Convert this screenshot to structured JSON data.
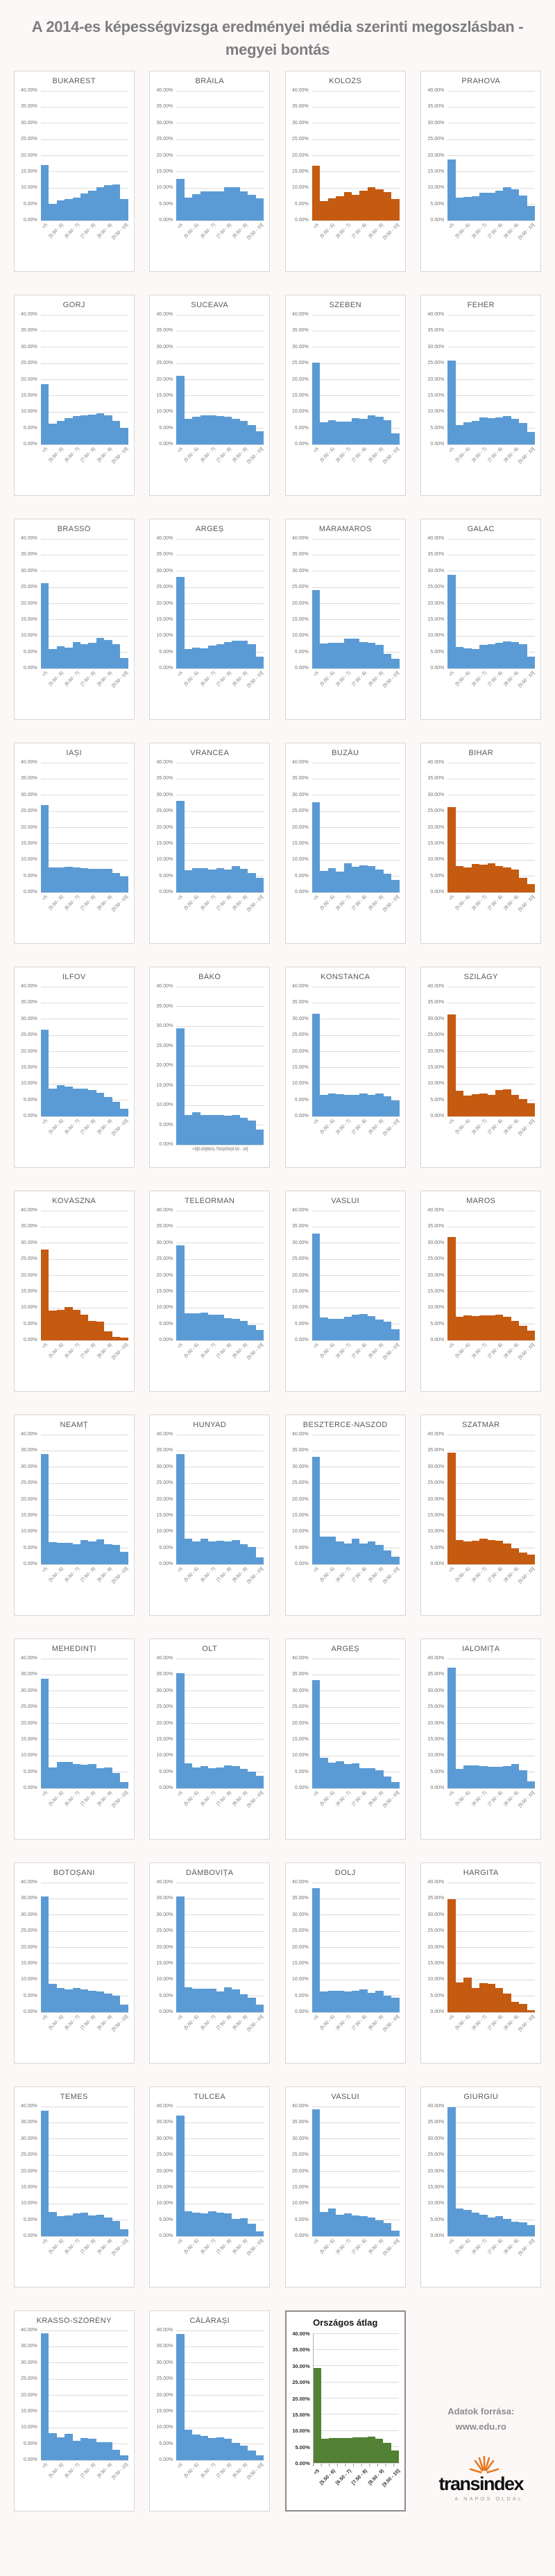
{
  "page": {
    "title": "A 2014-es képességvizsga eredményei média szerinti megoszlásban - megyei bontás"
  },
  "colors": {
    "blue": "#5b9bd5",
    "orange": "#c55a11",
    "green": "#538135",
    "grid": "#dcdcdc"
  },
  "axis": {
    "y_ticks": [
      "40.00%",
      "35.00%",
      "30.00%",
      "25.00%",
      "20.00%",
      "15.00%",
      "10.00%",
      "5.00%",
      "0.00%"
    ],
    "y_max": 40,
    "x_tick_labels": [
      "<5",
      "[5.50 - 6)",
      "[6.50 - 7)",
      "[7.50 - 8)",
      "[8.50 - 9)",
      "[9.50 - 10]"
    ],
    "bako_flat_labels": "<5[5.50[650(-750(850(9.50 - 10]"
  },
  "footer": {
    "source_label": "Adatok forrása:",
    "source_url": "www.edu.ro",
    "logo_text": "transindex",
    "logo_tagline": "A NAPOS OLDAL"
  },
  "chart_data": {
    "type": "bar",
    "title": "A 2014-es képességvizsga eredményei média szerinti megoszlásban - megyei bontás",
    "bins": [
      "<5",
      "[5 - 5.50)",
      "[5.50 - 6)",
      "[6 - 6.50)",
      "[6.50 - 7)",
      "[7 - 7.50)",
      "[7.50 - 8)",
      "[8 - 8.50)",
      "[8.50 - 9)",
      "[9 - 9.50)",
      "[9.50 - 10]"
    ],
    "shown_tick_indices": [
      0,
      2,
      4,
      6,
      8,
      10
    ],
    "ylim": [
      0,
      40
    ],
    "grid": true,
    "charts": [
      {
        "name": "BUKAREST",
        "color": "blue",
        "values": [
          17.1,
          5.2,
          6.3,
          6.6,
          7.0,
          8.3,
          9.2,
          10.3,
          11.0,
          11.1,
          6.6
        ]
      },
      {
        "name": "BRĂILA",
        "color": "blue",
        "values": [
          12.8,
          7.0,
          8.2,
          8.9,
          9.0,
          9.0,
          10.3,
          10.2,
          9.0,
          7.9,
          6.9
        ]
      },
      {
        "name": "KOLOZS",
        "color": "orange",
        "values": [
          17.0,
          6.0,
          6.9,
          7.6,
          8.7,
          7.9,
          9.3,
          10.3,
          9.6,
          8.8,
          6.6
        ]
      },
      {
        "name": "PRAHOVA",
        "color": "blue",
        "values": [
          18.8,
          7.1,
          7.3,
          7.6,
          8.5,
          8.6,
          9.3,
          10.3,
          9.7,
          7.7,
          4.5
        ]
      },
      {
        "name": "GORJ",
        "color": "blue",
        "values": [
          18.7,
          6.4,
          7.3,
          8.2,
          8.7,
          8.9,
          9.3,
          9.6,
          9.0,
          7.3,
          5.1
        ]
      },
      {
        "name": "SUCEAVA",
        "color": "blue",
        "values": [
          21.2,
          8.0,
          8.5,
          8.9,
          9.0,
          8.7,
          8.6,
          8.0,
          7.2,
          5.9,
          4.0
        ]
      },
      {
        "name": "SZEBEN",
        "color": "blue",
        "values": [
          25.3,
          6.8,
          7.6,
          7.1,
          7.0,
          8.1,
          7.9,
          9.0,
          8.5,
          7.5,
          3.4
        ]
      },
      {
        "name": "FEHÉR",
        "color": "blue",
        "values": [
          26.0,
          6.1,
          6.9,
          7.2,
          8.3,
          8.1,
          8.4,
          8.8,
          7.9,
          6.6,
          3.9
        ]
      },
      {
        "name": "BRASSÓ",
        "color": "blue",
        "values": [
          26.3,
          6.0,
          6.8,
          6.5,
          8.2,
          7.5,
          8.0,
          9.5,
          8.7,
          7.5,
          3.2
        ]
      },
      {
        "name": "ARGEȘ",
        "color": "blue",
        "values": [
          28.3,
          6.0,
          6.4,
          6.3,
          7.0,
          7.5,
          8.2,
          8.5,
          8.5,
          7.6,
          3.7
        ]
      },
      {
        "name": "MÁRAMAROS",
        "color": "blue",
        "values": [
          24.1,
          7.8,
          8.0,
          8.0,
          9.2,
          9.2,
          8.2,
          8.0,
          7.3,
          4.5,
          3.1
        ]
      },
      {
        "name": "GALAC",
        "color": "blue",
        "values": [
          28.9,
          6.6,
          6.2,
          5.9,
          7.2,
          7.5,
          8.0,
          8.3,
          8.1,
          7.4,
          3.7
        ]
      },
      {
        "name": "IAȘI",
        "color": "blue",
        "values": [
          26.9,
          7.8,
          7.8,
          8.0,
          7.7,
          7.6,
          7.3,
          7.2,
          7.2,
          6.0,
          4.9
        ]
      },
      {
        "name": "VRANCEA",
        "color": "blue",
        "values": [
          28.2,
          6.8,
          7.5,
          7.4,
          7.1,
          7.5,
          7.1,
          8.2,
          7.2,
          5.9,
          4.6
        ]
      },
      {
        "name": "BUZĂU",
        "color": "blue",
        "values": [
          27.9,
          6.7,
          7.4,
          6.5,
          9.1,
          7.9,
          8.3,
          8.1,
          7.1,
          5.7,
          3.9
        ]
      },
      {
        "name": "BIHAR",
        "color": "orange",
        "values": [
          26.4,
          8.1,
          7.7,
          8.8,
          8.5,
          9.1,
          8.2,
          7.7,
          7.1,
          4.6,
          2.5
        ]
      },
      {
        "name": "ILFOV",
        "color": "blue",
        "values": [
          26.8,
          8.5,
          9.6,
          9.2,
          8.6,
          8.6,
          8.1,
          7.2,
          6.1,
          4.6,
          2.4
        ]
      },
      {
        "name": "BÁKÓ",
        "color": "blue",
        "values": [
          29.5,
          7.6,
          8.2,
          7.6,
          7.5,
          7.5,
          7.3,
          7.6,
          6.9,
          6.2,
          3.9
        ],
        "flat_labels": true
      },
      {
        "name": "KONSTANCA",
        "color": "blue",
        "values": [
          31.7,
          6.6,
          7.1,
          6.9,
          6.6,
          6.7,
          7.1,
          6.6,
          7.0,
          6.3,
          5.0
        ]
      },
      {
        "name": "SZILÁGY",
        "color": "orange",
        "values": [
          31.5,
          8.0,
          6.5,
          6.9,
          7.0,
          6.7,
          8.1,
          8.3,
          6.6,
          5.3,
          4.1
        ]
      },
      {
        "name": "KOVÁSZNA",
        "color": "orange",
        "values": [
          28.1,
          9.2,
          9.4,
          10.2,
          9.5,
          8.0,
          5.9,
          5.8,
          2.7,
          1.0,
          0.9
        ]
      },
      {
        "name": "TELEORMAN",
        "color": "blue",
        "values": [
          29.4,
          8.3,
          8.4,
          8.6,
          8.0,
          8.0,
          6.9,
          6.6,
          6.0,
          4.8,
          3.2
        ]
      },
      {
        "name": "VASLUI",
        "color": "blue",
        "values": [
          32.9,
          7.0,
          6.6,
          6.6,
          7.3,
          8.0,
          8.1,
          7.5,
          6.4,
          5.8,
          3.5
        ]
      },
      {
        "name": "MAROS",
        "color": "orange",
        "values": [
          31.9,
          7.3,
          7.7,
          7.5,
          7.7,
          7.8,
          8.0,
          7.3,
          5.9,
          4.4,
          3.0
        ]
      },
      {
        "name": "NEAMȚ",
        "color": "blue",
        "values": [
          34.0,
          6.9,
          6.7,
          6.7,
          6.2,
          7.6,
          7.1,
          7.7,
          6.3,
          6.1,
          3.9
        ]
      },
      {
        "name": "HUNYAD",
        "color": "blue",
        "values": [
          34.0,
          7.9,
          7.0,
          7.9,
          7.0,
          7.2,
          7.0,
          7.6,
          6.3,
          5.3,
          2.2
        ]
      },
      {
        "name": "BESZTERCE-NASZÓD",
        "color": "blue",
        "values": [
          33.2,
          8.6,
          8.6,
          7.0,
          6.5,
          7.9,
          6.5,
          7.1,
          5.9,
          4.3,
          2.3
        ]
      },
      {
        "name": "SZATMÁR",
        "color": "orange",
        "values": [
          34.5,
          7.6,
          7.1,
          7.2,
          8.0,
          7.5,
          7.3,
          6.4,
          5.0,
          3.7,
          3.1
        ]
      },
      {
        "name": "MEHEDINȚI",
        "color": "blue",
        "values": [
          33.9,
          6.4,
          8.2,
          8.2,
          7.5,
          7.2,
          7.5,
          6.3,
          6.4,
          4.8,
          2.0
        ]
      },
      {
        "name": "OLT",
        "color": "blue",
        "values": [
          35.6,
          7.7,
          6.5,
          6.9,
          6.3,
          6.5,
          7.0,
          6.9,
          6.0,
          5.2,
          3.8
        ]
      },
      {
        "name": "ARGEȘ",
        "color": "blue",
        "values": [
          33.3,
          9.4,
          8.0,
          8.3,
          7.5,
          7.7,
          6.3,
          6.3,
          5.6,
          3.6,
          2.0
        ]
      },
      {
        "name": "IALOMIȚA",
        "color": "blue",
        "values": [
          37.3,
          6.0,
          7.0,
          7.0,
          6.8,
          6.7,
          6.6,
          6.8,
          7.5,
          5.5,
          2.1
        ]
      },
      {
        "name": "BOTOȘANI",
        "color": "blue",
        "values": [
          35.8,
          8.8,
          7.6,
          7.0,
          7.5,
          7.0,
          6.7,
          6.5,
          5.8,
          5.2,
          2.3
        ]
      },
      {
        "name": "DÂMBOVIȚA",
        "color": "blue",
        "values": [
          35.7,
          7.7,
          7.3,
          7.2,
          7.3,
          6.5,
          7.8,
          7.0,
          5.5,
          4.6,
          2.4
        ]
      },
      {
        "name": "DOLJ",
        "color": "blue",
        "values": [
          38.3,
          6.5,
          6.7,
          6.6,
          6.4,
          6.7,
          7.1,
          5.9,
          6.7,
          5.1,
          4.4
        ]
      },
      {
        "name": "HARGITA",
        "color": "orange",
        "values": [
          34.8,
          9.2,
          10.6,
          7.6,
          9.0,
          8.7,
          7.5,
          5.8,
          3.2,
          2.6,
          0.6
        ]
      },
      {
        "name": "TEMES",
        "color": "blue",
        "values": [
          38.7,
          7.4,
          6.2,
          6.5,
          7.1,
          7.3,
          6.5,
          6.7,
          5.8,
          4.8,
          2.1
        ]
      },
      {
        "name": "TULCEA",
        "color": "blue",
        "values": [
          37.3,
          7.8,
          7.2,
          7.1,
          7.8,
          7.2,
          7.1,
          5.4,
          5.6,
          3.9,
          1.6
        ]
      },
      {
        "name": "VASLUI",
        "color": "blue",
        "values": [
          39.2,
          7.5,
          8.5,
          6.7,
          7.1,
          6.5,
          6.2,
          5.8,
          5.0,
          4.0,
          1.7
        ]
      },
      {
        "name": "GIURGIU",
        "color": "blue",
        "values": [
          39.8,
          8.6,
          8.2,
          7.2,
          6.7,
          5.8,
          6.2,
          5.4,
          4.4,
          4.2,
          3.4
        ]
      },
      {
        "name": "KRASSÓ-SZÖRÉNY",
        "color": "blue",
        "values": [
          39.2,
          8.3,
          7.1,
          8.1,
          5.9,
          6.8,
          6.7,
          5.5,
          5.5,
          3.2,
          1.6
        ]
      },
      {
        "name": "CĂLĂRAȘI",
        "color": "blue",
        "values": [
          39.0,
          9.5,
          8.0,
          7.4,
          6.8,
          7.0,
          6.6,
          5.3,
          4.4,
          3.1,
          1.6
        ]
      },
      {
        "name": "Országos átlag",
        "color": "green",
        "values": [
          29.3,
          7.6,
          7.7,
          7.7,
          7.8,
          8.0,
          8.0,
          8.1,
          7.5,
          6.3,
          3.8
        ],
        "special": true
      }
    ]
  }
}
